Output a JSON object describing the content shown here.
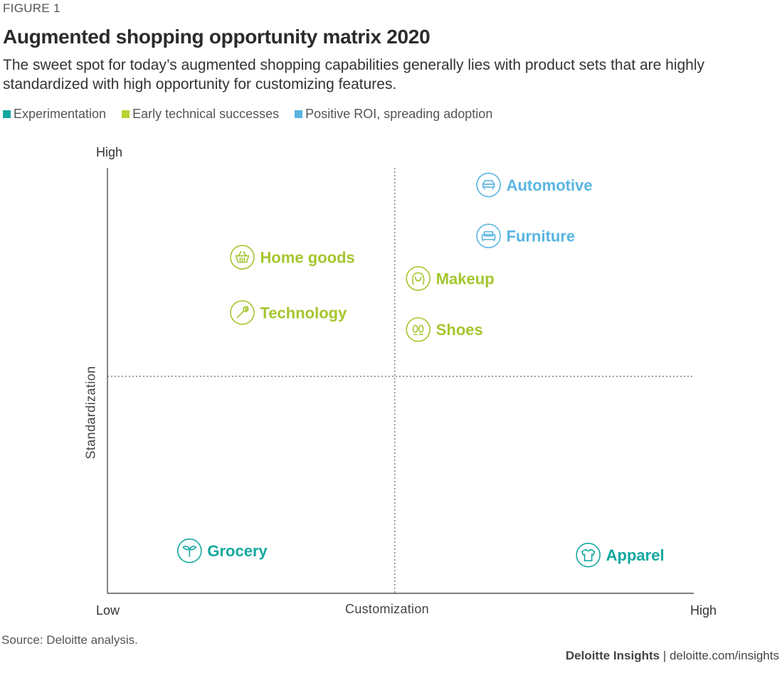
{
  "figure_label": "FIGURE 1",
  "colors": {
    "experimentation": "#13a89e",
    "early": "#a4c62d",
    "positive": "#58b5e1"
  },
  "legend": [
    {
      "label": "Experimentation",
      "color": "#13a89e"
    },
    {
      "label": "Early technical successes",
      "color": "#b7d332"
    },
    {
      "label": "Positive ROI, spreading adoption",
      "color": "#58b5e1"
    }
  ],
  "source": "Source: Deloitte analysis.",
  "credit": {
    "brand": "Deloitte Insights",
    "separator": " | ",
    "site": "deloitte.com/insights"
  },
  "chart_data": {
    "type": "scatter",
    "title": "Augmented shopping opportunity matrix 2020",
    "subtitle": "The sweet spot for today’s augmented shopping capabilities generally lies with product sets that are highly standardized with high opportunity for customizing features.",
    "xlabel": "Customization",
    "ylabel": "Standardization",
    "x_low_label": "Low",
    "x_high_label": "High",
    "y_high_label": "High",
    "xlim": [
      0,
      1
    ],
    "ylim": [
      0,
      1
    ],
    "quadrant_divider": {
      "x": 0.49,
      "y": 0.51
    },
    "points": [
      {
        "label": "Automotive",
        "x": 0.65,
        "y": 0.96,
        "category": "Positive ROI, spreading adoption",
        "icon": "car-icon"
      },
      {
        "label": "Furniture",
        "x": 0.65,
        "y": 0.84,
        "category": "Positive ROI, spreading adoption",
        "icon": "sofa-icon"
      },
      {
        "label": "Home goods",
        "x": 0.23,
        "y": 0.79,
        "category": "Early technical successes",
        "icon": "basket-icon"
      },
      {
        "label": "Makeup",
        "x": 0.53,
        "y": 0.74,
        "category": "Early technical successes",
        "icon": "face-icon"
      },
      {
        "label": "Technology",
        "x": 0.23,
        "y": 0.66,
        "category": "Early technical successes",
        "icon": "wrench-icon"
      },
      {
        "label": "Shoes",
        "x": 0.53,
        "y": 0.62,
        "category": "Early technical successes",
        "icon": "footprints-icon"
      },
      {
        "label": "Grocery",
        "x": 0.14,
        "y": 0.1,
        "category": "Experimentation",
        "icon": "sprout-icon"
      },
      {
        "label": "Apparel",
        "x": 0.82,
        "y": 0.09,
        "category": "Experimentation",
        "icon": "shirt-icon"
      }
    ]
  }
}
